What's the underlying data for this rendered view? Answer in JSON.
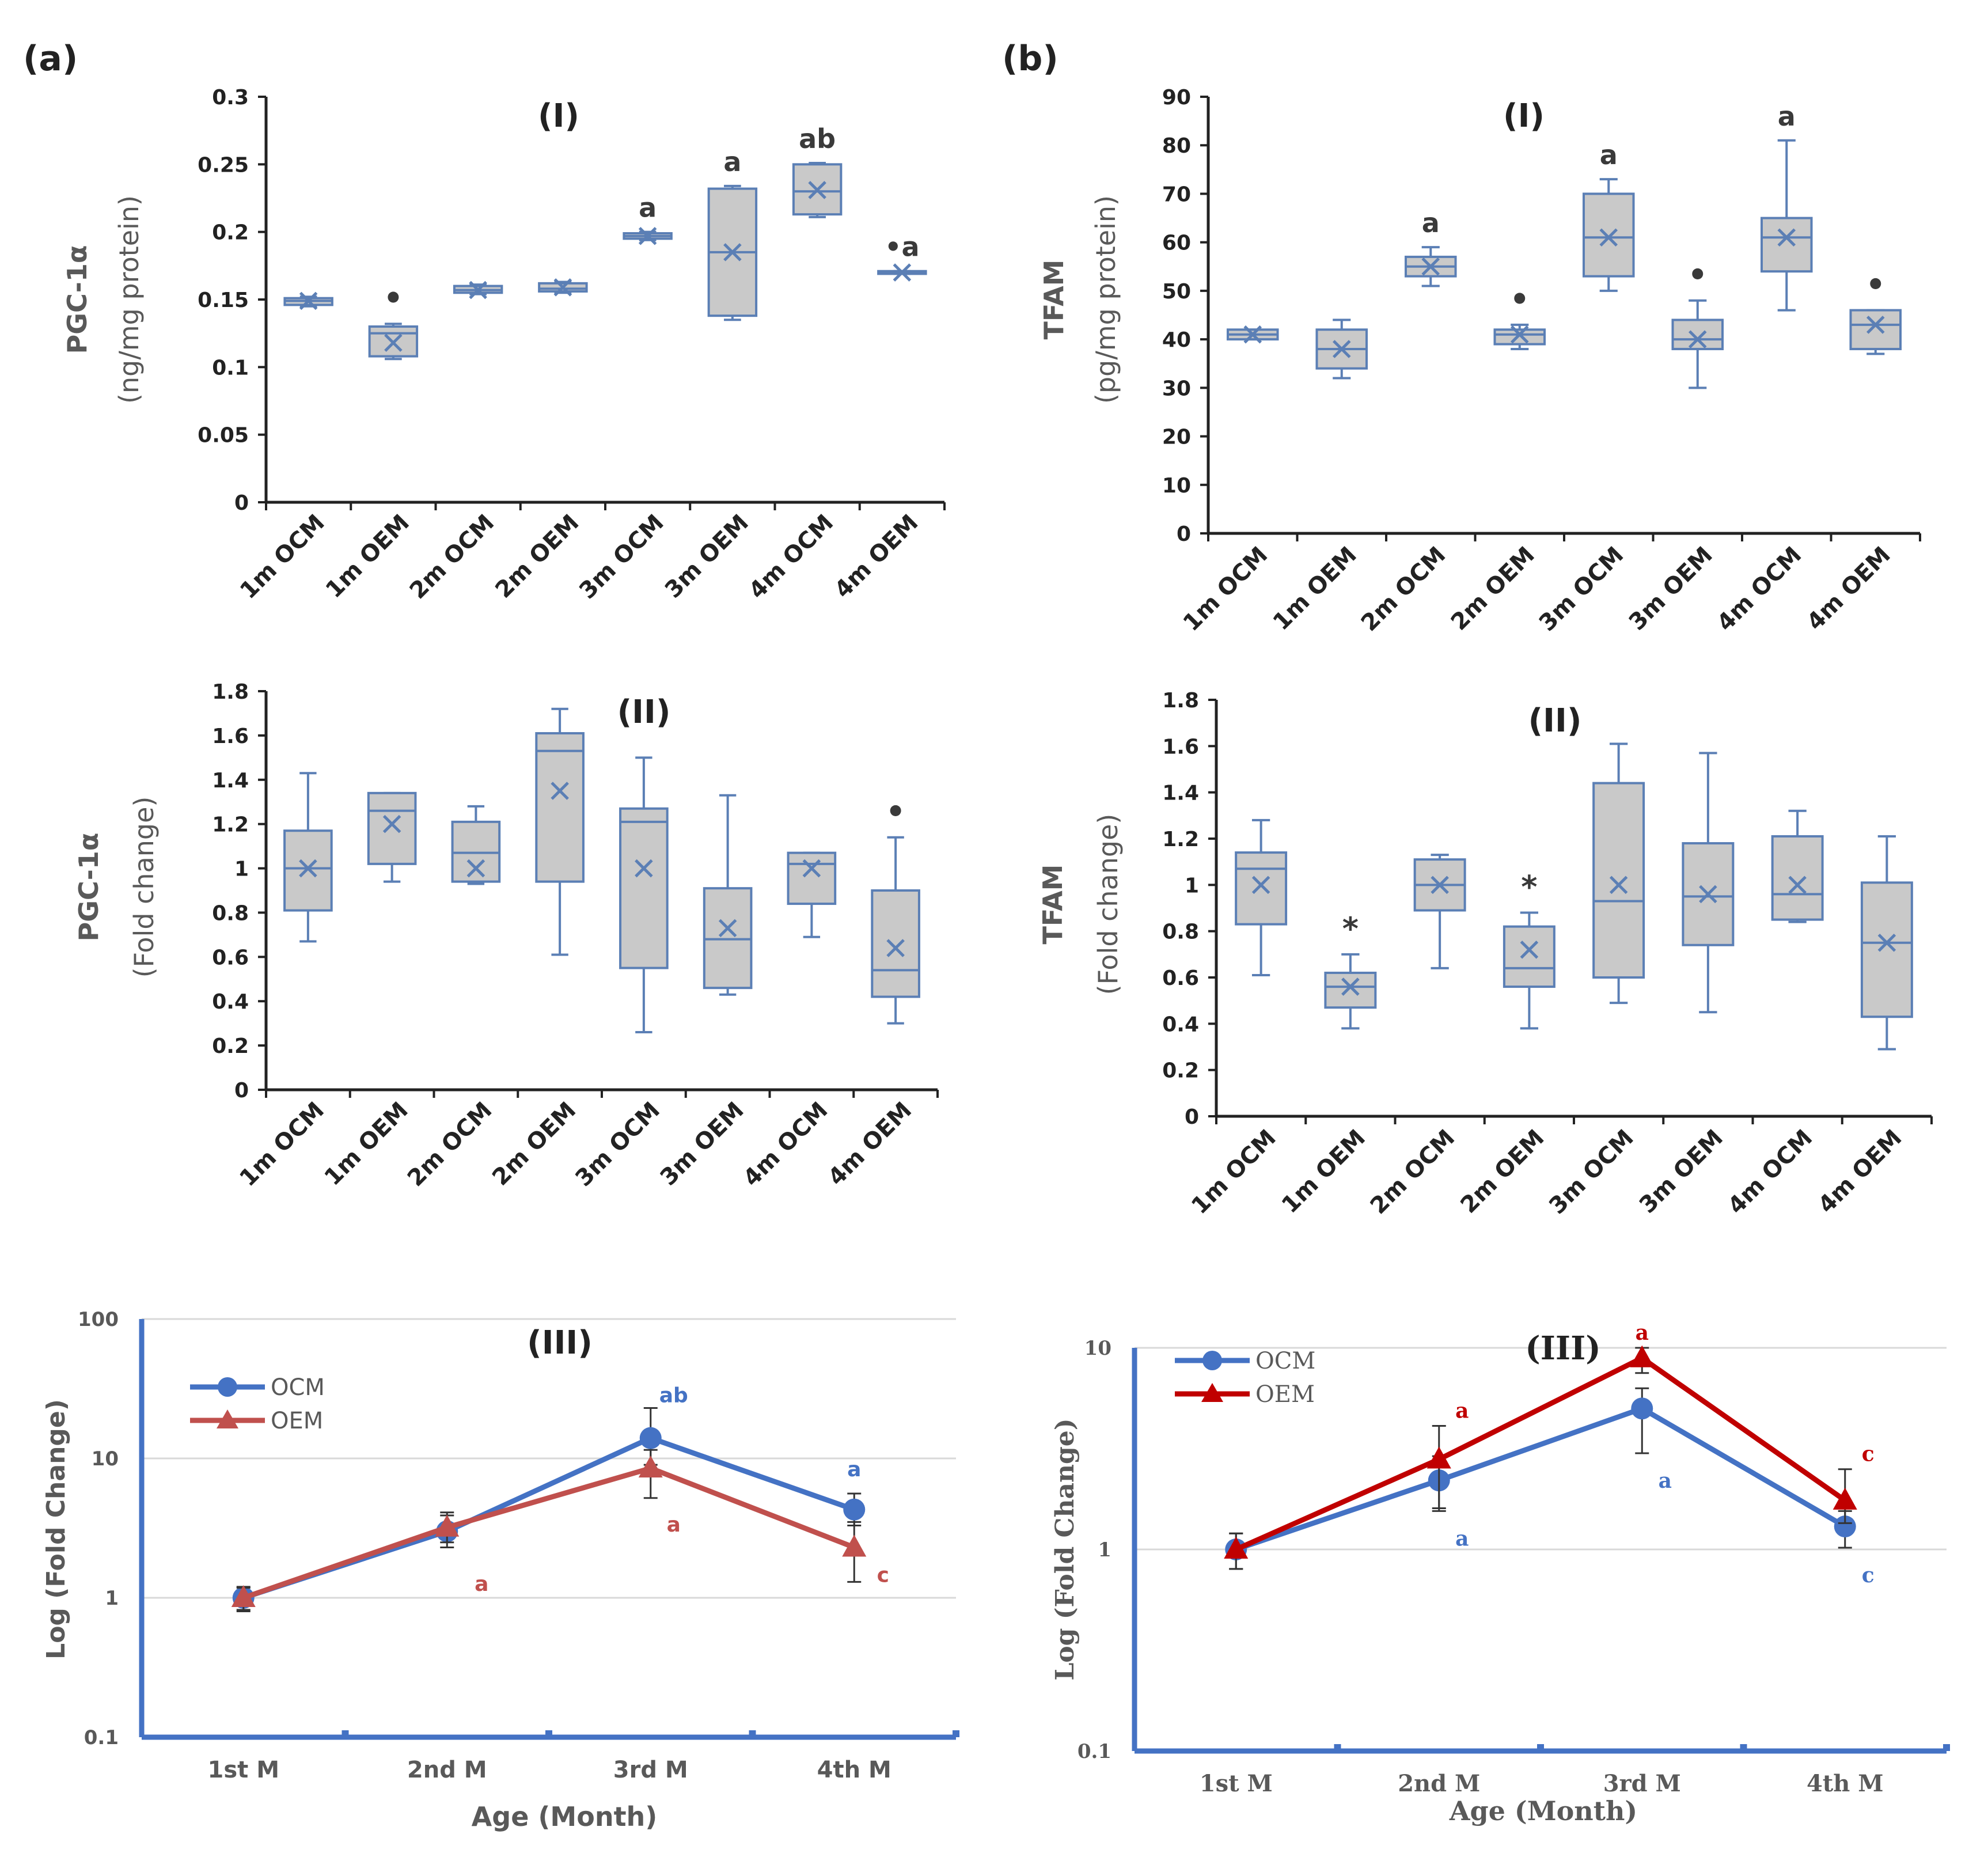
{
  "figure": {
    "panel_a_label": "(a)",
    "panel_b_label": "(b)"
  },
  "colors": {
    "box_stroke": "#5b7fb5",
    "box_fill": "#c9c9c9",
    "ocm_blue": "#4472c4",
    "oem_red_a": "#c0504d",
    "oem_red_b": "#c00000",
    "axis_blue": "#4472c4",
    "label_gray": "#595959",
    "marker_text": "#3a3a3a",
    "grid": "#d9d9d9"
  },
  "chart_data": [
    {
      "id": "a1",
      "type": "box",
      "title": "(I)",
      "ylabel_line1": "PGC-1α",
      "ylabel_line2": "(ng/mg protein)",
      "ylim": [
        0,
        0.3
      ],
      "ticks": [
        "0",
        "0.05",
        "0.1",
        "0.15",
        "0.2",
        "0.25",
        "0.3"
      ],
      "categories": [
        "1m OCM",
        "1m OEM",
        "2m OCM",
        "2m OEM",
        "3m OCM",
        "3m OEM",
        "4m OCM",
        "4m OEM"
      ],
      "boxes": [
        {
          "min": 0.145,
          "q1": 0.146,
          "median": 0.149,
          "q3": 0.151,
          "max": 0.152,
          "mean": 0.149,
          "annot": ""
        },
        {
          "min": 0.106,
          "q1": 0.108,
          "median": 0.125,
          "q3": 0.13,
          "max": 0.132,
          "mean": 0.118,
          "annot": "•"
        },
        {
          "min": 0.154,
          "q1": 0.155,
          "median": 0.157,
          "q3": 0.16,
          "max": 0.161,
          "mean": 0.157,
          "annot": ""
        },
        {
          "min": 0.155,
          "q1": 0.156,
          "median": 0.158,
          "q3": 0.162,
          "max": 0.163,
          "mean": 0.159,
          "annot": ""
        },
        {
          "min": 0.194,
          "q1": 0.195,
          "median": 0.197,
          "q3": 0.199,
          "max": 0.2,
          "mean": 0.197,
          "annot": "a"
        },
        {
          "min": 0.135,
          "q1": 0.138,
          "median": 0.185,
          "q3": 0.232,
          "max": 0.234,
          "mean": 0.185,
          "annot": "a"
        },
        {
          "min": 0.211,
          "q1": 0.213,
          "median": 0.23,
          "q3": 0.25,
          "max": 0.251,
          "mean": 0.231,
          "annot": "ab"
        },
        {
          "min": 0.169,
          "q1": 0.169,
          "median": 0.17,
          "q3": 0.171,
          "max": 0.171,
          "mean": 0.17,
          "annot": "•a"
        }
      ]
    },
    {
      "id": "a2",
      "type": "box",
      "title": "(II)",
      "ylabel_line1": "PGC-1α",
      "ylabel_line2": "(Fold change)",
      "ylim": [
        0,
        1.8
      ],
      "ticks": [
        "0",
        "0.2",
        "0.4",
        "0.6",
        "0.8",
        "1",
        "1.2",
        "1.4",
        "1.6",
        "1.8"
      ],
      "categories": [
        "1m OCM",
        "1m OEM",
        "2m OCM",
        "2m OEM",
        "3m OCM",
        "3m OEM",
        "4m OCM",
        "4m OEM"
      ],
      "boxes": [
        {
          "min": 0.67,
          "q1": 0.81,
          "median": 1.0,
          "q3": 1.17,
          "max": 1.43,
          "mean": 1.0,
          "annot": ""
        },
        {
          "min": 0.94,
          "q1": 1.02,
          "median": 1.26,
          "q3": 1.34,
          "max": 1.34,
          "mean": 1.2,
          "annot": ""
        },
        {
          "min": 0.93,
          "q1": 0.94,
          "median": 1.07,
          "q3": 1.21,
          "max": 1.28,
          "mean": 1.0,
          "annot": ""
        },
        {
          "min": 0.61,
          "q1": 0.94,
          "median": 1.53,
          "q3": 1.61,
          "max": 1.72,
          "mean": 1.35,
          "annot": ""
        },
        {
          "min": 0.26,
          "q1": 0.55,
          "median": 1.21,
          "q3": 1.27,
          "max": 1.5,
          "mean": 1.0,
          "annot": ""
        },
        {
          "min": 0.43,
          "q1": 0.46,
          "median": 0.68,
          "q3": 0.91,
          "max": 1.33,
          "mean": 0.73,
          "annot": ""
        },
        {
          "min": 0.69,
          "q1": 0.84,
          "median": 1.02,
          "q3": 1.07,
          "max": 1.07,
          "mean": 1.0,
          "annot": ""
        },
        {
          "min": 0.3,
          "q1": 0.42,
          "median": 0.54,
          "q3": 0.9,
          "max": 1.14,
          "mean": 0.64,
          "annot": "•"
        }
      ]
    },
    {
      "id": "a3",
      "type": "line",
      "scale": "log",
      "title": "(III)",
      "xlabel": "Age (Month)",
      "ylabel": "Log (Fold Change)",
      "ylim": [
        0.1,
        100
      ],
      "ticks": [
        "0.1",
        "1",
        "10",
        "100"
      ],
      "categories": [
        "1st M",
        "2nd M",
        "3rd M",
        "4th M"
      ],
      "series": [
        {
          "name": "OCM",
          "marker": "circle",
          "values": [
            1.0,
            3.0,
            14.0,
            4.3
          ],
          "err_low": [
            0.82,
            2.3,
            9.0,
            3.3
          ],
          "err_high": [
            1.2,
            3.9,
            23.0,
            5.6
          ],
          "labels": [
            "",
            "",
            "ab",
            "a"
          ]
        },
        {
          "name": "OEM",
          "marker": "triangle",
          "values": [
            1.0,
            3.2,
            8.5,
            2.3
          ],
          "err_low": [
            0.8,
            2.5,
            5.2,
            1.3
          ],
          "err_high": [
            1.18,
            4.1,
            11.5,
            3.5
          ],
          "labels": [
            "",
            "a",
            "a",
            "c"
          ]
        }
      ]
    },
    {
      "id": "b1",
      "type": "box",
      "title": "(I)",
      "ylabel_line1": "TFAM",
      "ylabel_line2": "(pg/mg protein)",
      "ylim": [
        0,
        90
      ],
      "ticks": [
        "0",
        "10",
        "20",
        "30",
        "40",
        "50",
        "60",
        "70",
        "80",
        "90"
      ],
      "categories": [
        "1m OCM",
        "1m OEM",
        "2m OCM",
        "2m OEM",
        "3m OCM",
        "3m OEM",
        "4m OCM",
        "4m OEM"
      ],
      "boxes": [
        {
          "min": 40,
          "q1": 40,
          "median": 41,
          "q3": 42,
          "max": 42,
          "mean": 41,
          "annot": ""
        },
        {
          "min": 32,
          "q1": 34,
          "median": 38,
          "q3": 42,
          "max": 44,
          "mean": 38,
          "annot": ""
        },
        {
          "min": 51,
          "q1": 53,
          "median": 55,
          "q3": 57,
          "max": 59,
          "mean": 55,
          "annot": "a"
        },
        {
          "min": 38,
          "q1": 39,
          "median": 41,
          "q3": 42,
          "max": 43,
          "mean": 41,
          "annot": "•"
        },
        {
          "min": 50,
          "q1": 53,
          "median": 61,
          "q3": 70,
          "max": 73,
          "mean": 61,
          "annot": "a"
        },
        {
          "min": 30,
          "q1": 38,
          "median": 40,
          "q3": 44,
          "max": 48,
          "mean": 40,
          "annot": "•"
        },
        {
          "min": 46,
          "q1": 54,
          "median": 61,
          "q3": 65,
          "max": 81,
          "mean": 61,
          "annot": "a"
        },
        {
          "min": 37,
          "q1": 38,
          "median": 43,
          "q3": 46,
          "max": 46,
          "mean": 43,
          "annot": "•"
        }
      ]
    },
    {
      "id": "b2",
      "type": "box",
      "title": "(II)",
      "ylabel_line1": "TFAM",
      "ylabel_line2": "(Fold change)",
      "ylim": [
        0,
        1.8
      ],
      "ticks": [
        "0",
        "0.2",
        "0.4",
        "0.6",
        "0.8",
        "1",
        "1.2",
        "1.4",
        "1.6",
        "1.8"
      ],
      "categories": [
        "1m OCM",
        "1m OEM",
        "2m OCM",
        "2m OEM",
        "3m OCM",
        "3m OEM",
        "4m OCM",
        "4m OEM"
      ],
      "boxes": [
        {
          "min": 0.61,
          "q1": 0.83,
          "median": 1.07,
          "q3": 1.14,
          "max": 1.28,
          "mean": 1.0,
          "annot": ""
        },
        {
          "min": 0.38,
          "q1": 0.47,
          "median": 0.56,
          "q3": 0.62,
          "max": 0.7,
          "mean": 0.56,
          "annot": "*"
        },
        {
          "min": 0.64,
          "q1": 0.89,
          "median": 1.0,
          "q3": 1.11,
          "max": 1.13,
          "mean": 1.0,
          "annot": ""
        },
        {
          "min": 0.38,
          "q1": 0.56,
          "median": 0.64,
          "q3": 0.82,
          "max": 0.88,
          "mean": 0.72,
          "annot": "*"
        },
        {
          "min": 0.49,
          "q1": 0.6,
          "median": 0.93,
          "q3": 1.44,
          "max": 1.61,
          "mean": 1.0,
          "annot": ""
        },
        {
          "min": 0.45,
          "q1": 0.74,
          "median": 0.95,
          "q3": 1.18,
          "max": 1.57,
          "mean": 0.96,
          "annot": ""
        },
        {
          "min": 0.84,
          "q1": 0.85,
          "median": 0.96,
          "q3": 1.21,
          "max": 1.32,
          "mean": 1.0,
          "annot": ""
        },
        {
          "min": 0.29,
          "q1": 0.43,
          "median": 0.75,
          "q3": 1.01,
          "max": 1.21,
          "mean": 0.75,
          "annot": ""
        }
      ]
    },
    {
      "id": "b3",
      "type": "line",
      "scale": "log",
      "title": "(III)",
      "xlabel": "Age (Month)",
      "ylabel": "Log (Fold Change)",
      "ylim": [
        0.1,
        10
      ],
      "ticks": [
        "0.1",
        "1",
        "10"
      ],
      "categories": [
        "1st M",
        "2nd M",
        "3rd M",
        "4th M"
      ],
      "series": [
        {
          "name": "OCM",
          "marker": "circle",
          "values": [
            1.0,
            2.2,
            5.0,
            1.3
          ],
          "err_low": [
            0.8,
            1.55,
            3.0,
            1.02
          ],
          "err_high": [
            1.2,
            2.9,
            6.3,
            1.55
          ],
          "labels": [
            "",
            "a",
            "a",
            "c"
          ]
        },
        {
          "name": "OEM",
          "marker": "triangle",
          "values": [
            1.0,
            2.8,
            8.9,
            1.75
          ],
          "err_low": [
            0.8,
            1.6,
            7.5,
            1.35
          ],
          "err_high": [
            1.2,
            4.1,
            10.0,
            2.5
          ],
          "labels": [
            "",
            "a",
            "a",
            "c"
          ]
        }
      ]
    }
  ]
}
